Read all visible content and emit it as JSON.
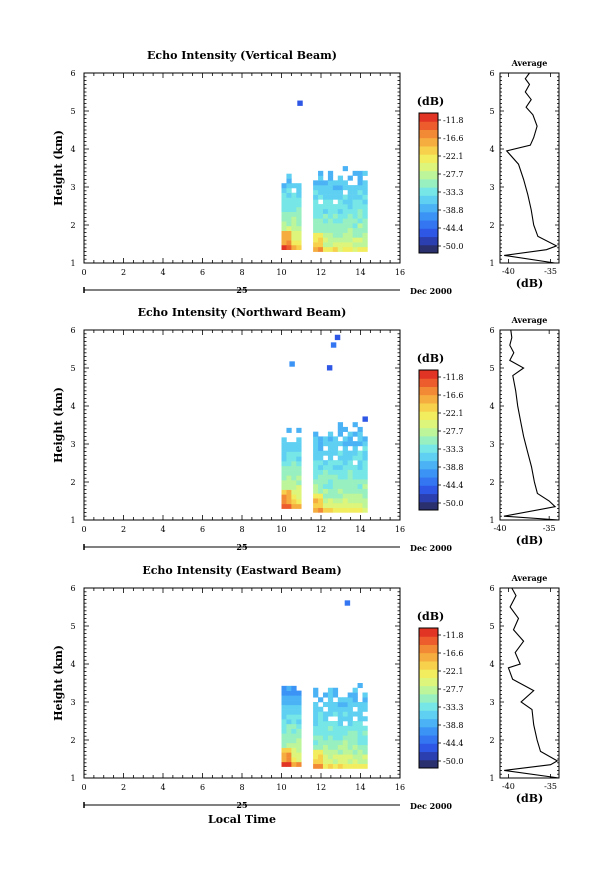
{
  "common": {
    "date_label": "Dec 2000",
    "day_label": "25",
    "x_ticks": [
      "0",
      "2",
      "4",
      "6",
      "8",
      "10",
      "12",
      "14",
      "16"
    ],
    "y_ticks": [
      "1",
      "2",
      "3",
      "4",
      "5",
      "6"
    ],
    "y_axis_label": "Height (km)",
    "x_axis_label": "Local Time",
    "colorbar_unit": "(dB)",
    "colorbar_ticks": [
      "-11.8",
      "-16.6",
      "-22.1",
      "-27.7",
      "-33.3",
      "-38.8",
      "-44.4",
      "-50.0"
    ],
    "average_title": "Average",
    "average_unit": "(dB)",
    "average_ticks": [
      "-40",
      "-35"
    ]
  },
  "colors": {
    "colormap": [
      "#2a2f6e",
      "#2c3fb0",
      "#2f57e6",
      "#3475f2",
      "#3b93f6",
      "#4bb3f5",
      "#5fd0f2",
      "#76e6e6",
      "#98efc0",
      "#bdf59a",
      "#dcf57a",
      "#f2ed5e",
      "#f7d04c",
      "#f6ad3f",
      "#f28a35",
      "#ec5c2c",
      "#e13425"
    ]
  },
  "chart_data": [
    {
      "type": "heatmap",
      "title": "Echo Intensity (Vertical Beam)",
      "xlabel": "",
      "ylabel": "Height (km)",
      "xlim": [
        0,
        16
      ],
      "ylim": [
        1,
        6
      ],
      "colorbar": {
        "label": "(dB)",
        "range": [
          -50.0,
          -11.8
        ]
      },
      "echo_blocks": [
        {
          "t_start": 10.0,
          "t_end": 10.8,
          "h_bottom": 1.35,
          "h_top": 3.45,
          "db_surface": -20,
          "db_top": -38
        },
        {
          "t_start": 11.6,
          "t_end": 14.3,
          "h_bottom": 1.3,
          "h_top": 3.55,
          "db_surface": -24,
          "db_top": -38
        }
      ],
      "isolated_echoes": [
        {
          "t": 10.8,
          "h": 5.15,
          "db": -44
        }
      ],
      "average_profile": {
        "title": "Average",
        "xlabel": "(dB)",
        "xlim": [
          -41,
          -34
        ],
        "ylim": [
          1,
          6
        ],
        "points": [
          [
            -34.5,
            1.0
          ],
          [
            -40.5,
            1.2
          ],
          [
            -35.5,
            1.35
          ],
          [
            -34.3,
            1.45
          ],
          [
            -36.5,
            1.7
          ],
          [
            -37.0,
            2.0
          ],
          [
            -37.3,
            2.4
          ],
          [
            -37.7,
            2.8
          ],
          [
            -38.2,
            3.2
          ],
          [
            -38.8,
            3.6
          ],
          [
            -40.2,
            3.95
          ],
          [
            -37.4,
            4.1
          ],
          [
            -37.0,
            4.3
          ],
          [
            -36.6,
            4.6
          ],
          [
            -37.1,
            4.9
          ],
          [
            -37.9,
            5.1
          ],
          [
            -37.3,
            5.3
          ],
          [
            -38.0,
            5.5
          ],
          [
            -37.5,
            5.7
          ],
          [
            -38.0,
            5.85
          ],
          [
            -37.5,
            6.0
          ]
        ]
      }
    },
    {
      "type": "heatmap",
      "title": "Echo Intensity (Northward Beam)",
      "xlabel": "",
      "ylabel": "Height (km)",
      "xlim": [
        0,
        16
      ],
      "ylim": [
        1,
        6
      ],
      "colorbar": {
        "label": "(dB)",
        "range": [
          -50.0,
          -11.8
        ]
      },
      "echo_blocks": [
        {
          "t_start": 10.0,
          "t_end": 10.8,
          "h_bottom": 1.3,
          "h_top": 3.5,
          "db_surface": -20,
          "db_top": -38
        },
        {
          "t_start": 11.6,
          "t_end": 14.3,
          "h_bottom": 1.2,
          "h_top": 3.5,
          "db_surface": -24,
          "db_top": -38
        }
      ],
      "isolated_echoes": [
        {
          "t": 10.4,
          "h": 5.05,
          "db": -40
        },
        {
          "t": 12.3,
          "h": 4.95,
          "db": -44
        },
        {
          "t": 12.5,
          "h": 5.55,
          "db": -42
        },
        {
          "t": 12.7,
          "h": 5.75,
          "db": -45
        },
        {
          "t": 14.1,
          "h": 3.6,
          "db": -44
        }
      ],
      "average_profile": {
        "title": "Average",
        "xlabel": "(dB)",
        "xlim": [
          -40,
          -34
        ],
        "ylim": [
          1,
          6
        ],
        "points": [
          [
            -34.0,
            1.0
          ],
          [
            -39.6,
            1.1
          ],
          [
            -34.4,
            1.35
          ],
          [
            -35.0,
            1.5
          ],
          [
            -36.2,
            1.7
          ],
          [
            -36.5,
            2.0
          ],
          [
            -36.8,
            2.4
          ],
          [
            -37.2,
            2.8
          ],
          [
            -37.6,
            3.2
          ],
          [
            -37.9,
            3.6
          ],
          [
            -38.2,
            4.0
          ],
          [
            -38.4,
            4.4
          ],
          [
            -38.7,
            4.8
          ],
          [
            -37.6,
            5.0
          ],
          [
            -39.0,
            5.2
          ],
          [
            -38.6,
            5.4
          ],
          [
            -39.0,
            5.6
          ],
          [
            -38.8,
            5.8
          ],
          [
            -38.9,
            6.0
          ]
        ]
      }
    },
    {
      "type": "heatmap",
      "title": "Echo Intensity (Eastward Beam)",
      "xlabel": "Local Time",
      "ylabel": "Height (km)",
      "xlim": [
        0,
        16
      ],
      "ylim": [
        1,
        6
      ],
      "colorbar": {
        "label": "(dB)",
        "range": [
          -50.0,
          -11.8
        ]
      },
      "echo_blocks": [
        {
          "t_start": 10.0,
          "t_end": 10.8,
          "h_bottom": 1.3,
          "h_top": 3.55,
          "db_surface": -20,
          "db_top": -40
        },
        {
          "t_start": 11.6,
          "t_end": 14.3,
          "h_bottom": 1.25,
          "h_top": 3.45,
          "db_surface": -24,
          "db_top": -38
        }
      ],
      "isolated_echoes": [
        {
          "t": 13.2,
          "h": 5.55,
          "db": -42
        }
      ],
      "average_profile": {
        "title": "Average",
        "xlabel": "(dB)",
        "xlim": [
          -41,
          -34
        ],
        "ylim": [
          1,
          6
        ],
        "points": [
          [
            -34.0,
            1.0
          ],
          [
            -40.5,
            1.2
          ],
          [
            -35.0,
            1.35
          ],
          [
            -34.2,
            1.45
          ],
          [
            -36.2,
            1.7
          ],
          [
            -36.6,
            2.0
          ],
          [
            -37.0,
            2.4
          ],
          [
            -37.2,
            2.8
          ],
          [
            -38.5,
            3.0
          ],
          [
            -37.0,
            3.3
          ],
          [
            -39.5,
            3.6
          ],
          [
            -40.0,
            3.9
          ],
          [
            -38.6,
            4.0
          ],
          [
            -39.2,
            4.3
          ],
          [
            -38.2,
            4.6
          ],
          [
            -39.4,
            4.9
          ],
          [
            -38.8,
            5.2
          ],
          [
            -39.8,
            5.5
          ],
          [
            -39.1,
            5.8
          ],
          [
            -39.6,
            6.0
          ]
        ]
      }
    }
  ]
}
